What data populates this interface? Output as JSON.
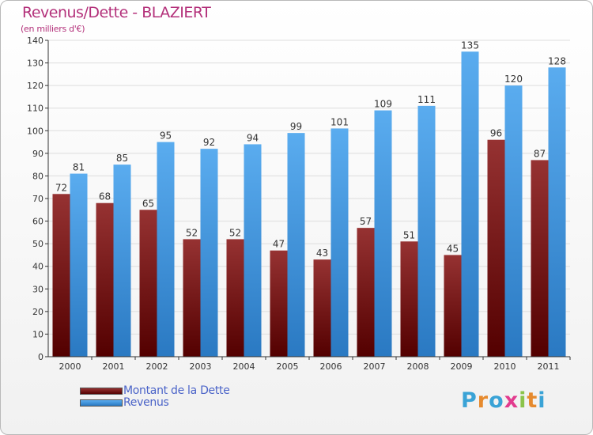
{
  "title": "Revenus/Dette - BLAZIERT",
  "subtitle": "(en milliers d'€)",
  "logo": {
    "letters": [
      {
        "ch": "P",
        "color": "#3aa3d6"
      },
      {
        "ch": "r",
        "color": "#e68a2e"
      },
      {
        "ch": "o",
        "color": "#3aa3d6"
      },
      {
        "ch": "x",
        "color": "#e23b8e"
      },
      {
        "ch": "i",
        "color": "#8bc34a"
      },
      {
        "ch": "t",
        "color": "#e68a2e"
      },
      {
        "ch": "i",
        "color": "#3aa3d6"
      }
    ]
  },
  "colors": {
    "debt_top": "#963232",
    "debt_bottom": "#530000",
    "rev_top": "#5aacef",
    "rev_bottom": "#2a79c2",
    "grid": "#dddddd",
    "axis": "#333333",
    "text": "#333333"
  },
  "chart_data": {
    "type": "bar",
    "title": "Revenus/Dette - BLAZIERT",
    "subtitle": "(en milliers d'€)",
    "categories": [
      "2000",
      "2001",
      "2002",
      "2003",
      "2004",
      "2005",
      "2006",
      "2007",
      "2008",
      "2009",
      "2010",
      "2011"
    ],
    "series": [
      {
        "name": "Montant de la Dette",
        "values": [
          72,
          68,
          65,
          52,
          52,
          47,
          43,
          57,
          51,
          45,
          96,
          87
        ]
      },
      {
        "name": "Revenus",
        "values": [
          81,
          85,
          95,
          92,
          94,
          99,
          101,
          109,
          111,
          135,
          120,
          128
        ]
      }
    ],
    "ylim": [
      0,
      140
    ],
    "yticks": [
      0,
      10,
      20,
      30,
      40,
      50,
      60,
      70,
      80,
      90,
      100,
      110,
      120,
      130,
      140
    ],
    "grid": true,
    "legend": "bottom-left"
  }
}
